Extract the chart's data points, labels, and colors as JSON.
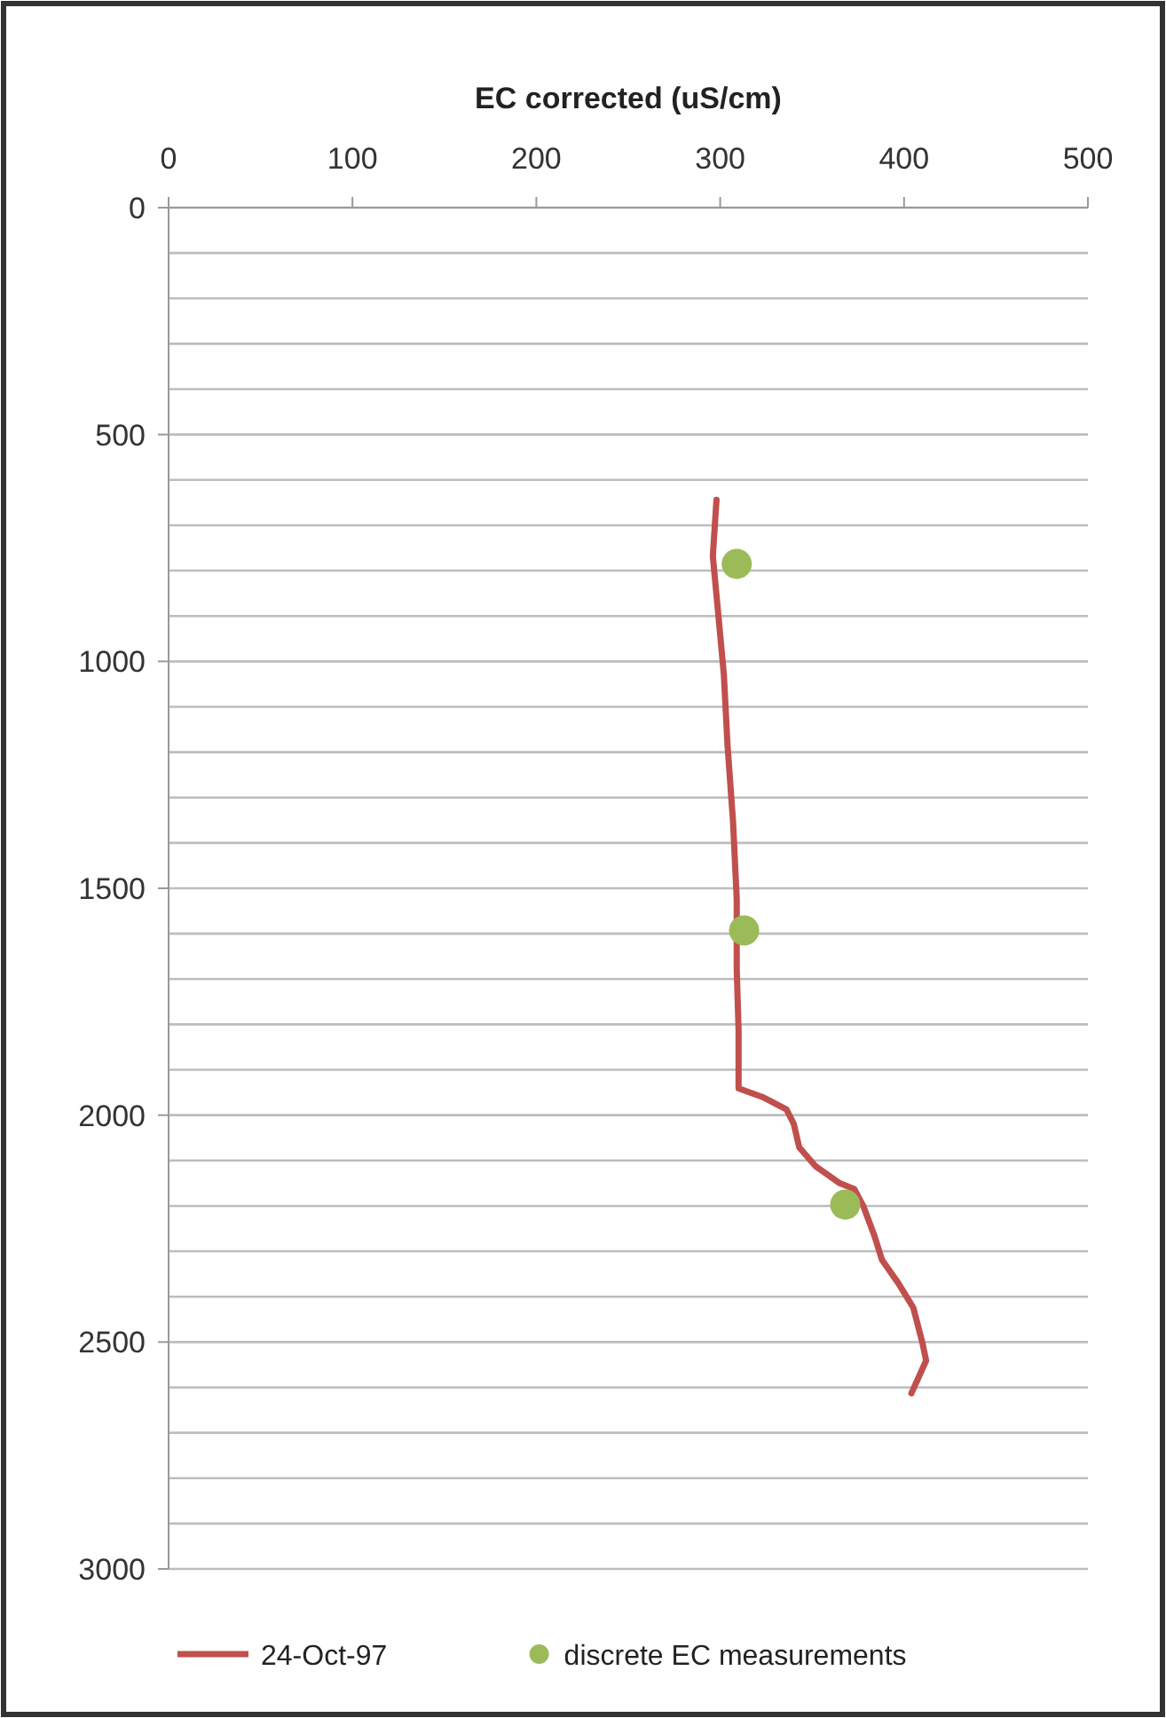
{
  "chart_data": {
    "type": "line",
    "xlabel": "EC corrected (uS/cm)",
    "xlim": [
      0,
      500
    ],
    "xticks": [
      0,
      100,
      200,
      300,
      400,
      500
    ],
    "ylim": [
      3000,
      0
    ],
    "yticks": [
      0,
      {
        "value": 100,
        "label": null
      },
      {
        "value": 200,
        "label": null
      },
      {
        "value": 300,
        "label": null
      },
      {
        "value": 400,
        "label": null
      },
      500,
      {
        "value": 600,
        "label": null
      },
      {
        "value": 700,
        "label": null
      },
      {
        "value": 800,
        "label": null
      },
      {
        "value": 900,
        "label": null
      },
      1000,
      {
        "value": 1100,
        "label": null
      },
      {
        "value": 1200,
        "label": null
      },
      {
        "value": 1300,
        "label": null
      },
      {
        "value": 1400,
        "label": null
      },
      1500,
      {
        "value": 1600,
        "label": null
      },
      {
        "value": 1700,
        "label": null
      },
      {
        "value": 1800,
        "label": null
      },
      {
        "value": 1900,
        "label": null
      },
      2000,
      {
        "value": 2100,
        "label": null
      },
      {
        "value": 2200,
        "label": null
      },
      {
        "value": 2300,
        "label": null
      },
      {
        "value": 2400,
        "label": null
      },
      2500,
      {
        "value": 2600,
        "label": null
      },
      {
        "value": 2700,
        "label": null
      },
      {
        "value": 2800,
        "label": null
      },
      {
        "value": 2900,
        "label": null
      },
      3000
    ],
    "grid": "y",
    "legend": "bottom",
    "series": [
      {
        "name": "24-Oct-97",
        "color": "#c0504d",
        "marker": "none",
        "line_style": "solid",
        "x": [
          298,
          296,
          299,
          302,
          304,
          307,
          309,
          309,
          310,
          310,
          323,
          336,
          340,
          343,
          352,
          365,
          373,
          378,
          384,
          388,
          397,
          405,
          410,
          412,
          404
        ],
        "values": [
          644,
          768,
          898,
          1029,
          1185,
          1354,
          1524,
          1680,
          1811,
          1941,
          1960,
          1987,
          2019,
          2071,
          2113,
          2150,
          2163,
          2202,
          2267,
          2319,
          2371,
          2424,
          2502,
          2541,
          2613
        ]
      },
      {
        "name": "discrete EC measurements",
        "type": "scatter",
        "color": "#9bbb59",
        "marker": "circle",
        "x": [
          309,
          313,
          368
        ],
        "values": [
          785,
          1593,
          2197
        ]
      }
    ]
  }
}
